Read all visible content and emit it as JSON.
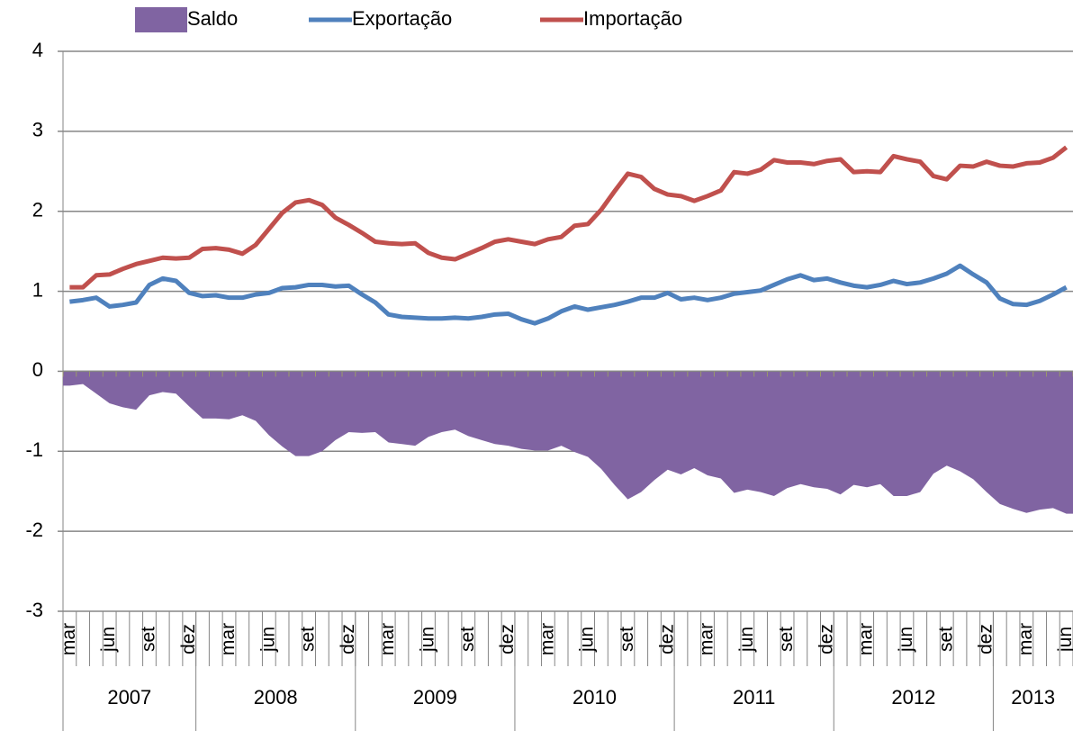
{
  "chart_data": {
    "type": "line",
    "categories": [
      "mar",
      null,
      null,
      "jun",
      null,
      null,
      "set",
      null,
      null,
      "dez",
      null,
      null,
      "mar",
      null,
      null,
      "jun",
      null,
      null,
      "set",
      null,
      null,
      "dez",
      null,
      null,
      "mar",
      null,
      null,
      "jun",
      null,
      null,
      "set",
      null,
      null,
      "dez",
      null,
      null,
      "mar",
      null,
      null,
      "jun",
      null,
      null,
      "set",
      null,
      null,
      "dez",
      null,
      null,
      "mar",
      null,
      null,
      "jun",
      null,
      null,
      "set",
      null,
      null,
      "dez",
      null,
      null,
      "mar",
      null,
      null,
      "jun",
      null,
      null,
      "set",
      null,
      null,
      "dez",
      null,
      null,
      "mar",
      null,
      null,
      "jun"
    ],
    "category_years": [
      "2007",
      null,
      null,
      null,
      null,
      null,
      null,
      null,
      null,
      null,
      "2008",
      null,
      null,
      null,
      null,
      null,
      null,
      null,
      null,
      null,
      null,
      null,
      "2009",
      null,
      null,
      null,
      null,
      null,
      null,
      null,
      null,
      null,
      null,
      null,
      "2010",
      null,
      null,
      null,
      null,
      null,
      null,
      null,
      null,
      null,
      null,
      null,
      "2011",
      null,
      null,
      null,
      null,
      null,
      null,
      null,
      null,
      null,
      null,
      null,
      "2012",
      null,
      null,
      null,
      null,
      null,
      null,
      null,
      null,
      null,
      null,
      null,
      "2013",
      null,
      null,
      null,
      null,
      null
    ],
    "series": [
      {
        "name": "Saldo",
        "type": "area",
        "color": "#8064a2",
        "values": [
          -0.18,
          -0.16,
          -0.28,
          -0.4,
          -0.45,
          -0.48,
          -0.3,
          -0.26,
          -0.28,
          -0.44,
          -0.59,
          -0.59,
          -0.6,
          -0.55,
          -0.62,
          -0.8,
          -0.94,
          -1.06,
          -1.06,
          -1.0,
          -0.86,
          -0.76,
          -0.77,
          -0.76,
          -0.89,
          -0.91,
          -0.93,
          -0.82,
          -0.76,
          -0.73,
          -0.81,
          -0.86,
          -0.91,
          -0.93,
          -0.97,
          -0.99,
          -0.99,
          -0.93,
          -1.01,
          -1.07,
          -1.22,
          -1.42,
          -1.6,
          -1.51,
          -1.36,
          -1.23,
          -1.29,
          -1.21,
          -1.3,
          -1.34,
          -1.52,
          -1.48,
          -1.51,
          -1.56,
          -1.46,
          -1.41,
          -1.45,
          -1.47,
          -1.54,
          -1.42,
          -1.45,
          -1.41,
          -1.56,
          -1.56,
          -1.51,
          -1.28,
          -1.18,
          -1.25,
          -1.35,
          -1.51,
          -1.66,
          -1.72,
          -1.77,
          -1.73,
          -1.71,
          -1.78
        ]
      },
      {
        "name": "Exportação",
        "type": "line",
        "color": "#4f81bd",
        "values": [
          0.87,
          0.89,
          0.92,
          0.81,
          0.83,
          0.86,
          1.08,
          1.16,
          1.13,
          0.98,
          0.94,
          0.95,
          0.92,
          0.92,
          0.96,
          0.98,
          1.04,
          1.05,
          1.08,
          1.08,
          1.06,
          1.07,
          0.96,
          0.86,
          0.71,
          0.68,
          0.67,
          0.66,
          0.66,
          0.67,
          0.66,
          0.68,
          0.71,
          0.72,
          0.65,
          0.6,
          0.66,
          0.75,
          0.81,
          0.77,
          0.8,
          0.83,
          0.87,
          0.92,
          0.92,
          0.98,
          0.9,
          0.92,
          0.89,
          0.92,
          0.97,
          0.99,
          1.01,
          1.08,
          1.15,
          1.2,
          1.14,
          1.16,
          1.11,
          1.07,
          1.05,
          1.08,
          1.13,
          1.09,
          1.11,
          1.16,
          1.22,
          1.32,
          1.21,
          1.11,
          0.91,
          0.84,
          0.83,
          0.88,
          0.96,
          1.05
        ]
      },
      {
        "name": "Importação",
        "type": "line",
        "color": "#c0504d",
        "values": [
          1.05,
          1.05,
          1.2,
          1.21,
          1.28,
          1.34,
          1.38,
          1.42,
          1.41,
          1.42,
          1.53,
          1.54,
          1.52,
          1.47,
          1.58,
          1.78,
          1.98,
          2.11,
          2.14,
          2.08,
          1.92,
          1.83,
          1.73,
          1.62,
          1.6,
          1.59,
          1.6,
          1.48,
          1.42,
          1.4,
          1.47,
          1.54,
          1.62,
          1.65,
          1.62,
          1.59,
          1.65,
          1.68,
          1.82,
          1.84,
          2.02,
          2.25,
          2.47,
          2.43,
          2.28,
          2.21,
          2.19,
          2.13,
          2.19,
          2.26,
          2.49,
          2.47,
          2.52,
          2.64,
          2.61,
          2.61,
          2.59,
          2.63,
          2.65,
          2.49,
          2.5,
          2.49,
          2.69,
          2.65,
          2.62,
          2.44,
          2.4,
          2.57,
          2.56,
          2.62,
          2.57,
          2.56,
          2.6,
          2.61,
          2.67,
          2.8
        ]
      }
    ],
    "ylim": [
      -3,
      4
    ],
    "yticks": [
      -3,
      -2,
      -1,
      0,
      1,
      2,
      3,
      4
    ],
    "grid": true,
    "legend": "top"
  }
}
